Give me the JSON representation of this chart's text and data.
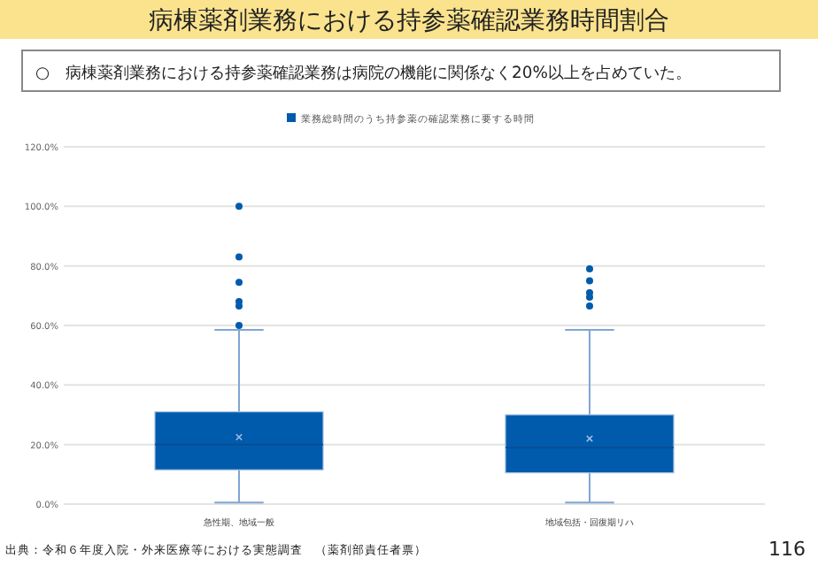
{
  "chart_data": {
    "type": "box",
    "title": "病棟薬剤業務における持参薬確認業務時間割合",
    "subtitle": "○　病棟薬剤業務における持参薬確認業務は病院の機能に関係なく20%以上を占めていた。",
    "categories": [
      "急性期、地域一般",
      "地域包括・回復期リハ"
    ],
    "series": [
      {
        "name": "業務総時間のうち持参薬の確認業務に要する時間",
        "color": "#005bac",
        "boxes": [
          {
            "low": 0.5,
            "q1": 11.5,
            "median": 20,
            "q3": 31,
            "high": 58.5,
            "mean": 22.5,
            "outliers": [
              60,
              66.5,
              68,
              74.5,
              83,
              100
            ]
          },
          {
            "low": 0.5,
            "q1": 10.5,
            "median": 19,
            "q3": 30,
            "high": 58.5,
            "mean": 22,
            "outliers": [
              66.5,
              69.5,
              71,
              75,
              79
            ]
          }
        ]
      }
    ],
    "ylim": [
      0,
      120
    ],
    "yticks": [
      {
        "value": 0,
        "label": "0.0%"
      },
      {
        "value": 20,
        "label": "20.0%"
      },
      {
        "value": 40,
        "label": "40.0%"
      },
      {
        "value": 60,
        "label": "60.0%"
      },
      {
        "value": 80,
        "label": "80.0%"
      },
      {
        "value": 100,
        "label": "100.0%"
      },
      {
        "value": 120,
        "label": "120.0%"
      }
    ],
    "grid": "y",
    "legend": "top",
    "annotations": [
      "出典：令和６年度入院・外来医療等における実態調査　（薬剤部責任者票）",
      "116"
    ]
  }
}
